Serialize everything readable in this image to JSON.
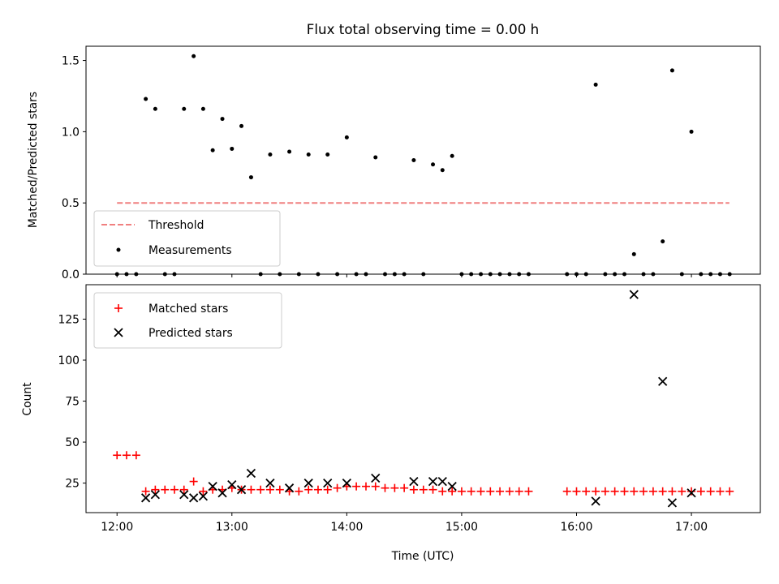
{
  "chart_data": [
    {
      "type": "scatter",
      "title": "Flux total observing time = 0.00 h",
      "ylabel": "Matched/Predicted stars",
      "xlabel": "",
      "xlim": [
        11.73,
        17.6
      ],
      "ylim": [
        0.0,
        1.6
      ],
      "y_ticks": [
        0.0,
        0.5,
        1.0,
        1.5
      ],
      "y_tick_labels": [
        "0.0",
        "0.5",
        "1.0",
        "1.5"
      ],
      "x_ticks": [
        12,
        13,
        14,
        15,
        16,
        17
      ],
      "threshold": {
        "name": "Threshold",
        "value": 0.5,
        "x_range": [
          12.0,
          17.33
        ],
        "color": "#f08080"
      },
      "legend": {
        "placement": "lower-left",
        "entries": [
          "Threshold",
          "Measurements"
        ]
      },
      "series": [
        {
          "name": "Measurements",
          "color": "#000000",
          "x": [
            12.0,
            12.083,
            12.167,
            12.25,
            12.333,
            12.417,
            12.5,
            12.583,
            12.667,
            12.75,
            12.833,
            12.917,
            13.0,
            13.083,
            13.167,
            13.25,
            13.333,
            13.417,
            13.5,
            13.583,
            13.667,
            13.75,
            13.833,
            13.917,
            14.0,
            14.083,
            14.167,
            14.25,
            14.333,
            14.417,
            14.5,
            14.583,
            14.667,
            14.75,
            14.833,
            14.917,
            15.0,
            15.083,
            15.167,
            15.25,
            15.333,
            15.417,
            15.5,
            15.583,
            15.917,
            16.0,
            16.083,
            16.167,
            16.25,
            16.333,
            16.417,
            16.5,
            16.583,
            16.667,
            16.75,
            16.833,
            16.917,
            17.0,
            17.083,
            17.167,
            17.25,
            17.333
          ],
          "y": [
            0.0,
            0.0,
            0.0,
            1.23,
            1.16,
            0.0,
            0.0,
            1.16,
            1.53,
            1.16,
            0.87,
            1.09,
            0.88,
            1.04,
            0.68,
            0.0,
            0.84,
            0.0,
            0.86,
            0.0,
            0.84,
            0.0,
            0.84,
            0.0,
            0.96,
            0.0,
            0.0,
            0.82,
            0.0,
            0.0,
            0.0,
            0.8,
            0.0,
            0.77,
            0.73,
            0.83,
            0.0,
            0.0,
            0.0,
            0.0,
            0.0,
            0.0,
            0.0,
            0.0,
            0.0,
            0.0,
            0.0,
            1.33,
            0.0,
            0.0,
            0.0,
            0.14,
            0.0,
            0.0,
            0.23,
            1.43,
            0.0,
            1.0,
            0.0,
            0.0,
            0.0,
            0.0
          ]
        }
      ]
    },
    {
      "type": "scatter",
      "title": "",
      "ylabel": "Count",
      "xlabel": "Time (UTC)",
      "xlim": [
        11.73,
        17.6
      ],
      "ylim": [
        7,
        146
      ],
      "y_ticks": [
        25,
        50,
        75,
        100,
        125
      ],
      "y_tick_labels": [
        "25",
        "50",
        "75",
        "100",
        "125"
      ],
      "x_ticks": [
        12,
        13,
        14,
        15,
        16,
        17
      ],
      "x_tick_labels": [
        "12:00",
        "13:00",
        "14:00",
        "15:00",
        "16:00",
        "17:00"
      ],
      "legend": {
        "placement": "upper-left",
        "entries": [
          "Matched stars",
          "Predicted stars"
        ]
      },
      "series": [
        {
          "name": "Matched stars",
          "marker": "plus",
          "color": "#ff0000",
          "x": [
            12.0,
            12.083,
            12.167,
            12.25,
            12.333,
            12.417,
            12.5,
            12.583,
            12.667,
            12.75,
            12.833,
            12.917,
            13.0,
            13.083,
            13.167,
            13.25,
            13.333,
            13.417,
            13.5,
            13.583,
            13.667,
            13.75,
            13.833,
            13.917,
            14.0,
            14.083,
            14.167,
            14.25,
            14.333,
            14.417,
            14.5,
            14.583,
            14.667,
            14.75,
            14.833,
            14.917,
            15.0,
            15.083,
            15.167,
            15.25,
            15.333,
            15.417,
            15.5,
            15.583,
            15.917,
            16.0,
            16.083,
            16.167,
            16.25,
            16.333,
            16.417,
            16.5,
            16.583,
            16.667,
            16.75,
            16.833,
            16.917,
            17.0,
            17.083,
            17.167,
            17.25,
            17.333
          ],
          "y": [
            42,
            42,
            42,
            20,
            21,
            21,
            21,
            21,
            26,
            20,
            21,
            21,
            22,
            21,
            21,
            21,
            21,
            21,
            20,
            20,
            21,
            21,
            21,
            22,
            23,
            23,
            23,
            23,
            22,
            22,
            22,
            21,
            21,
            21,
            20,
            20,
            20,
            20,
            20,
            20,
            20,
            20,
            20,
            20,
            20,
            20,
            20,
            20,
            20,
            20,
            20,
            20,
            20,
            20,
            20,
            20,
            20,
            20,
            20,
            20,
            20,
            20
          ]
        },
        {
          "name": "Predicted stars",
          "marker": "x",
          "color": "#000000",
          "x": [
            12.25,
            12.333,
            12.583,
            12.667,
            12.75,
            12.833,
            12.917,
            13.0,
            13.083,
            13.167,
            13.333,
            13.5,
            13.667,
            13.833,
            14.0,
            14.25,
            14.583,
            14.75,
            14.833,
            14.917,
            16.167,
            16.5,
            16.75,
            16.833,
            17.0
          ],
          "y": [
            16,
            18,
            18,
            16,
            17,
            23,
            19,
            24,
            21,
            31,
            25,
            22,
            25,
            25,
            25,
            28,
            26,
            26,
            26,
            23,
            14,
            140,
            87,
            13,
            19
          ]
        }
      ]
    }
  ]
}
